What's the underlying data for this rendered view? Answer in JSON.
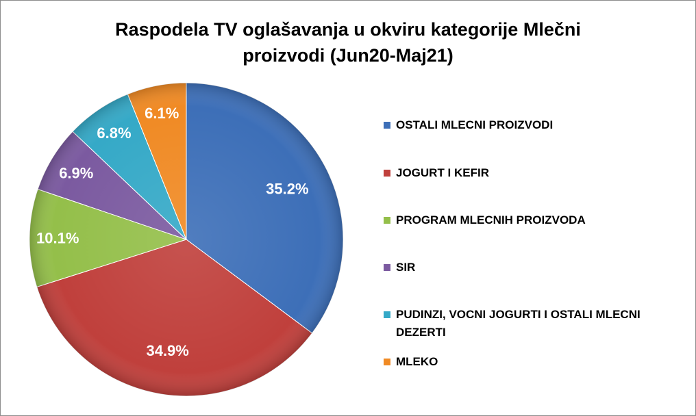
{
  "chart_data": {
    "type": "pie",
    "title_line1": "Raspodela TV oglašavanja u okviru kategorije Mlečni",
    "title_line2": "proizvodi   (Jun20-Maj21)",
    "slices": [
      {
        "name": "OSTALI MLECNI PROIZVODI",
        "value": 35.2,
        "label": "35.2%",
        "color": "#3d6fb8"
      },
      {
        "name": "JOGURT I KEFIR",
        "value": 34.9,
        "label": "34.9%",
        "color": "#c0403c"
      },
      {
        "name": "PROGRAM MLECNIH PROIZVODA",
        "value": 10.1,
        "label": "10.1%",
        "color": "#94bf4a"
      },
      {
        "name": "SIR",
        "value": 6.9,
        "label": "6.9%",
        "color": "#7b5aa0"
      },
      {
        "name": "PUDINZI, VOCNI JOGURTI I OSTALI MLECNI DEZERTI",
        "value": 6.8,
        "label": "6.8%",
        "color": "#35a9c7"
      },
      {
        "name": "MLEKO",
        "value": 6.1,
        "label": "6.1%",
        "color": "#f08a24"
      }
    ],
    "legend_position": "right"
  }
}
